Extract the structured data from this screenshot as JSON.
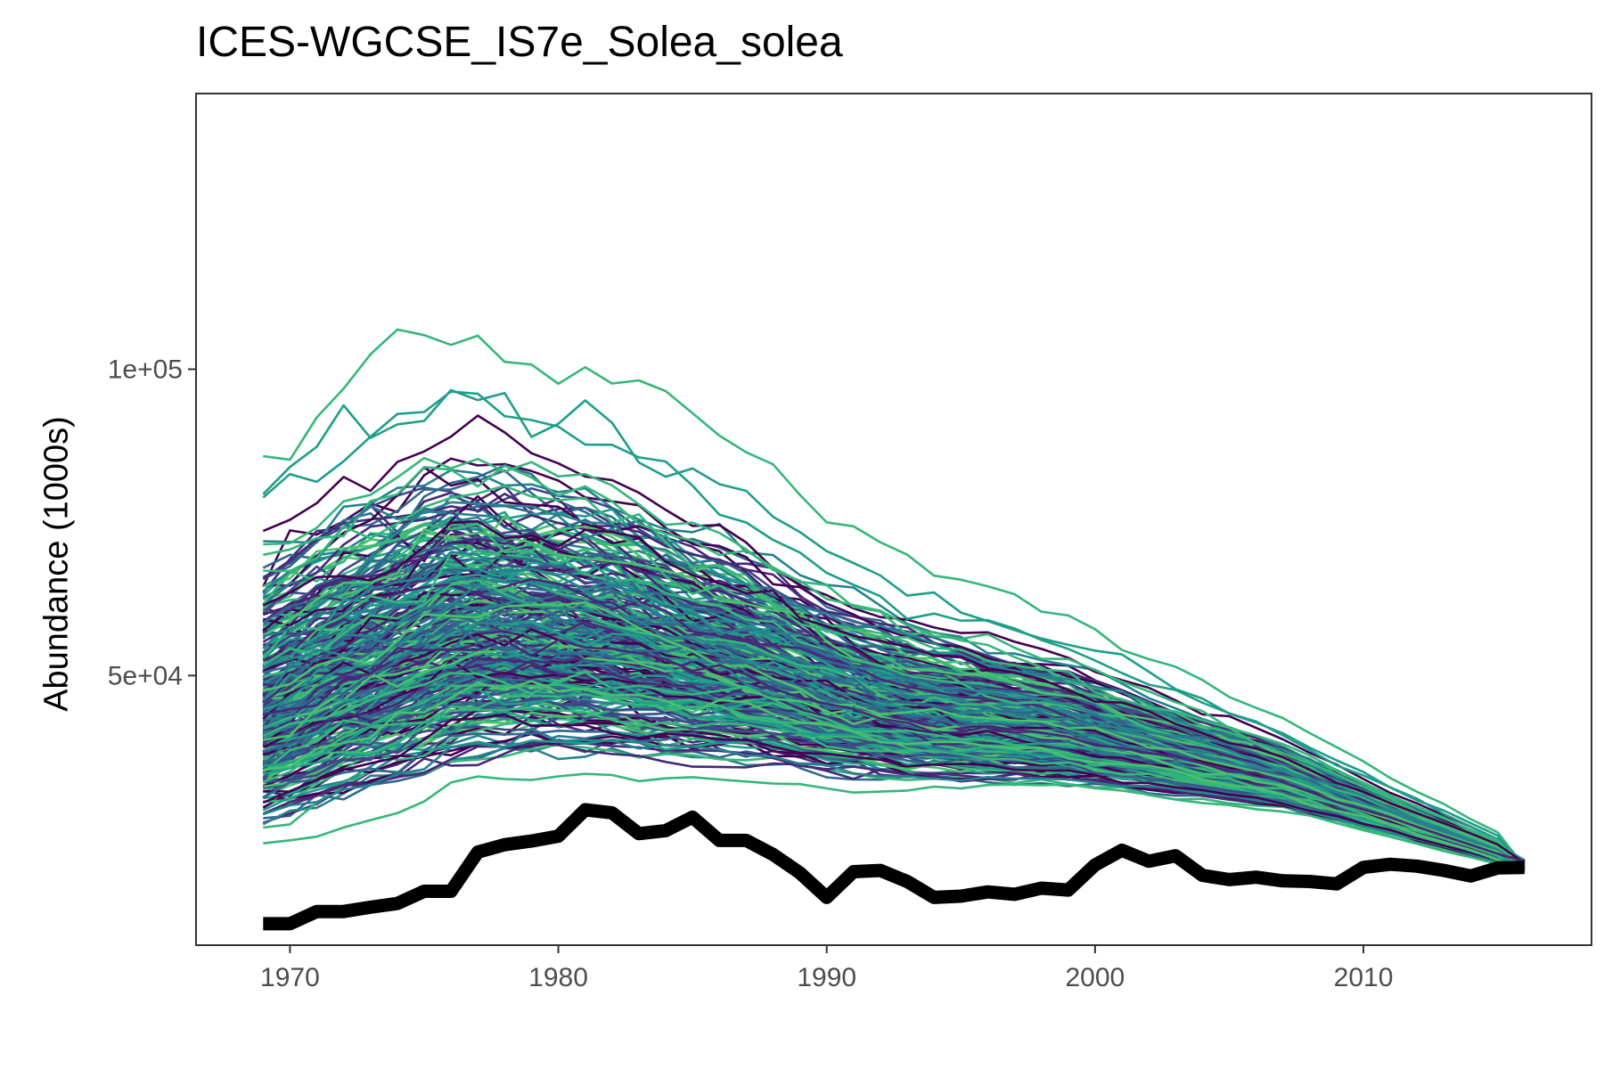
{
  "chart_data": {
    "type": "line",
    "title": "ICES-WGCSE_IS7e_Solea_solea",
    "xlabel": "",
    "ylabel": "Abundance (1000s)",
    "xlim": [
      1966.5,
      2018.5
    ],
    "ylim": [
      6000,
      145000
    ],
    "x_ticks": [
      1970,
      1980,
      1990,
      2000,
      2010
    ],
    "y_ticks": [
      50000,
      100000
    ],
    "x_tick_labels": [
      "1970",
      "1980",
      "1990",
      "2000",
      "2010"
    ],
    "y_tick_labels": [
      "5e+04",
      "1e+05"
    ],
    "grid": false,
    "legend": "none",
    "x": [
      1969,
      1970,
      1971,
      1972,
      1973,
      1974,
      1975,
      1976,
      1977,
      1978,
      1979,
      1980,
      1981,
      1982,
      1983,
      1984,
      1985,
      1986,
      1987,
      1988,
      1989,
      1990,
      1991,
      1992,
      1993,
      1994,
      1995,
      1996,
      1997,
      1998,
      1999,
      2000,
      2001,
      2002,
      2003,
      2004,
      2005,
      2006,
      2007,
      2008,
      2009,
      2010,
      2011,
      2012,
      2013,
      2014,
      2015,
      2016
    ],
    "reference_series": {
      "color": "#000000",
      "values": [
        9500,
        9500,
        11500,
        11500,
        12200,
        12800,
        14800,
        14800,
        21200,
        22400,
        23000,
        23800,
        28100,
        27600,
        24200,
        24700,
        26900,
        23100,
        23100,
        20800,
        17800,
        13800,
        18000,
        18200,
        16400,
        13800,
        14000,
        14700,
        14300,
        15300,
        15000,
        19100,
        21500,
        19700,
        20600,
        17400,
        16700,
        17100,
        16500,
        16400,
        16000,
        18700,
        19200,
        18900,
        18200,
        17300,
        18600,
        18700
      ]
    },
    "simulated_band": {
      "count": 300,
      "palette": [
        "#440154",
        "#482878",
        "#3e4989",
        "#31688e",
        "#26828e",
        "#1f9e89",
        "#35b779",
        "#4ac16d"
      ],
      "center": [
        45000,
        47000,
        49000,
        51000,
        52500,
        54000,
        55500,
        57000,
        57500,
        57500,
        57500,
        57000,
        56500,
        56000,
        55000,
        54000,
        53000,
        52000,
        51000,
        50000,
        48500,
        47000,
        46000,
        45000,
        44000,
        43500,
        43000,
        42500,
        42000,
        41500,
        41000,
        40000,
        39000,
        38000,
        37000,
        36000,
        35000,
        34000,
        33000,
        31500,
        30000,
        28500,
        27000,
        25500,
        24000,
        22500,
        21000,
        19000
      ]
    }
  }
}
